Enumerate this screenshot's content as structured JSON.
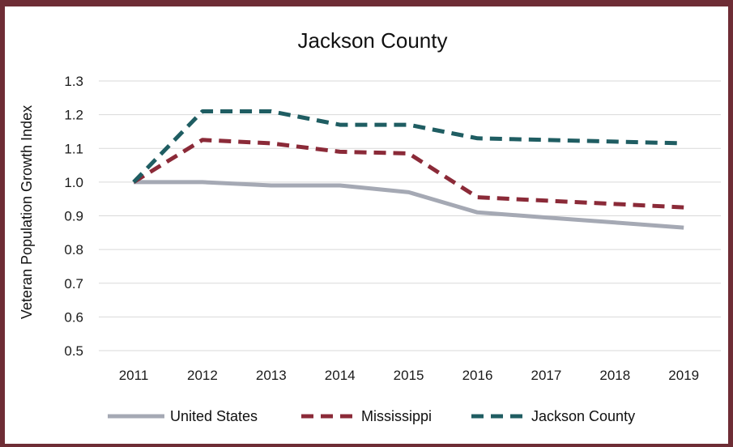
{
  "chart_data": {
    "type": "line",
    "title": "Jackson County",
    "xlabel": "",
    "ylabel": "Veteran Population Growth Index",
    "x": [
      "2011",
      "2012",
      "2013",
      "2014",
      "2015",
      "2016",
      "2017",
      "2018",
      "2019"
    ],
    "ylim": [
      0.5,
      1.3
    ],
    "yticks": [
      "0.5",
      "0.6",
      "0.7",
      "0.8",
      "0.9",
      "1.0",
      "1.1",
      "1.2",
      "1.3"
    ],
    "grid": "horizontal",
    "legend_position": "bottom",
    "series": [
      {
        "name": "United States",
        "color": "#a5a9b4",
        "style": "solid",
        "values": [
          1.0,
          1.0,
          0.99,
          0.99,
          0.97,
          0.91,
          0.895,
          0.88,
          0.865
        ]
      },
      {
        "name": "Mississippi",
        "color": "#8b2a38",
        "style": "dashed",
        "values": [
          1.0,
          1.125,
          1.115,
          1.09,
          1.085,
          0.955,
          0.945,
          0.935,
          0.925
        ]
      },
      {
        "name": "Jackson County",
        "color": "#1f5d62",
        "style": "dashed",
        "values": [
          1.0,
          1.21,
          1.21,
          1.17,
          1.17,
          1.13,
          1.125,
          1.12,
          1.115
        ]
      }
    ]
  }
}
